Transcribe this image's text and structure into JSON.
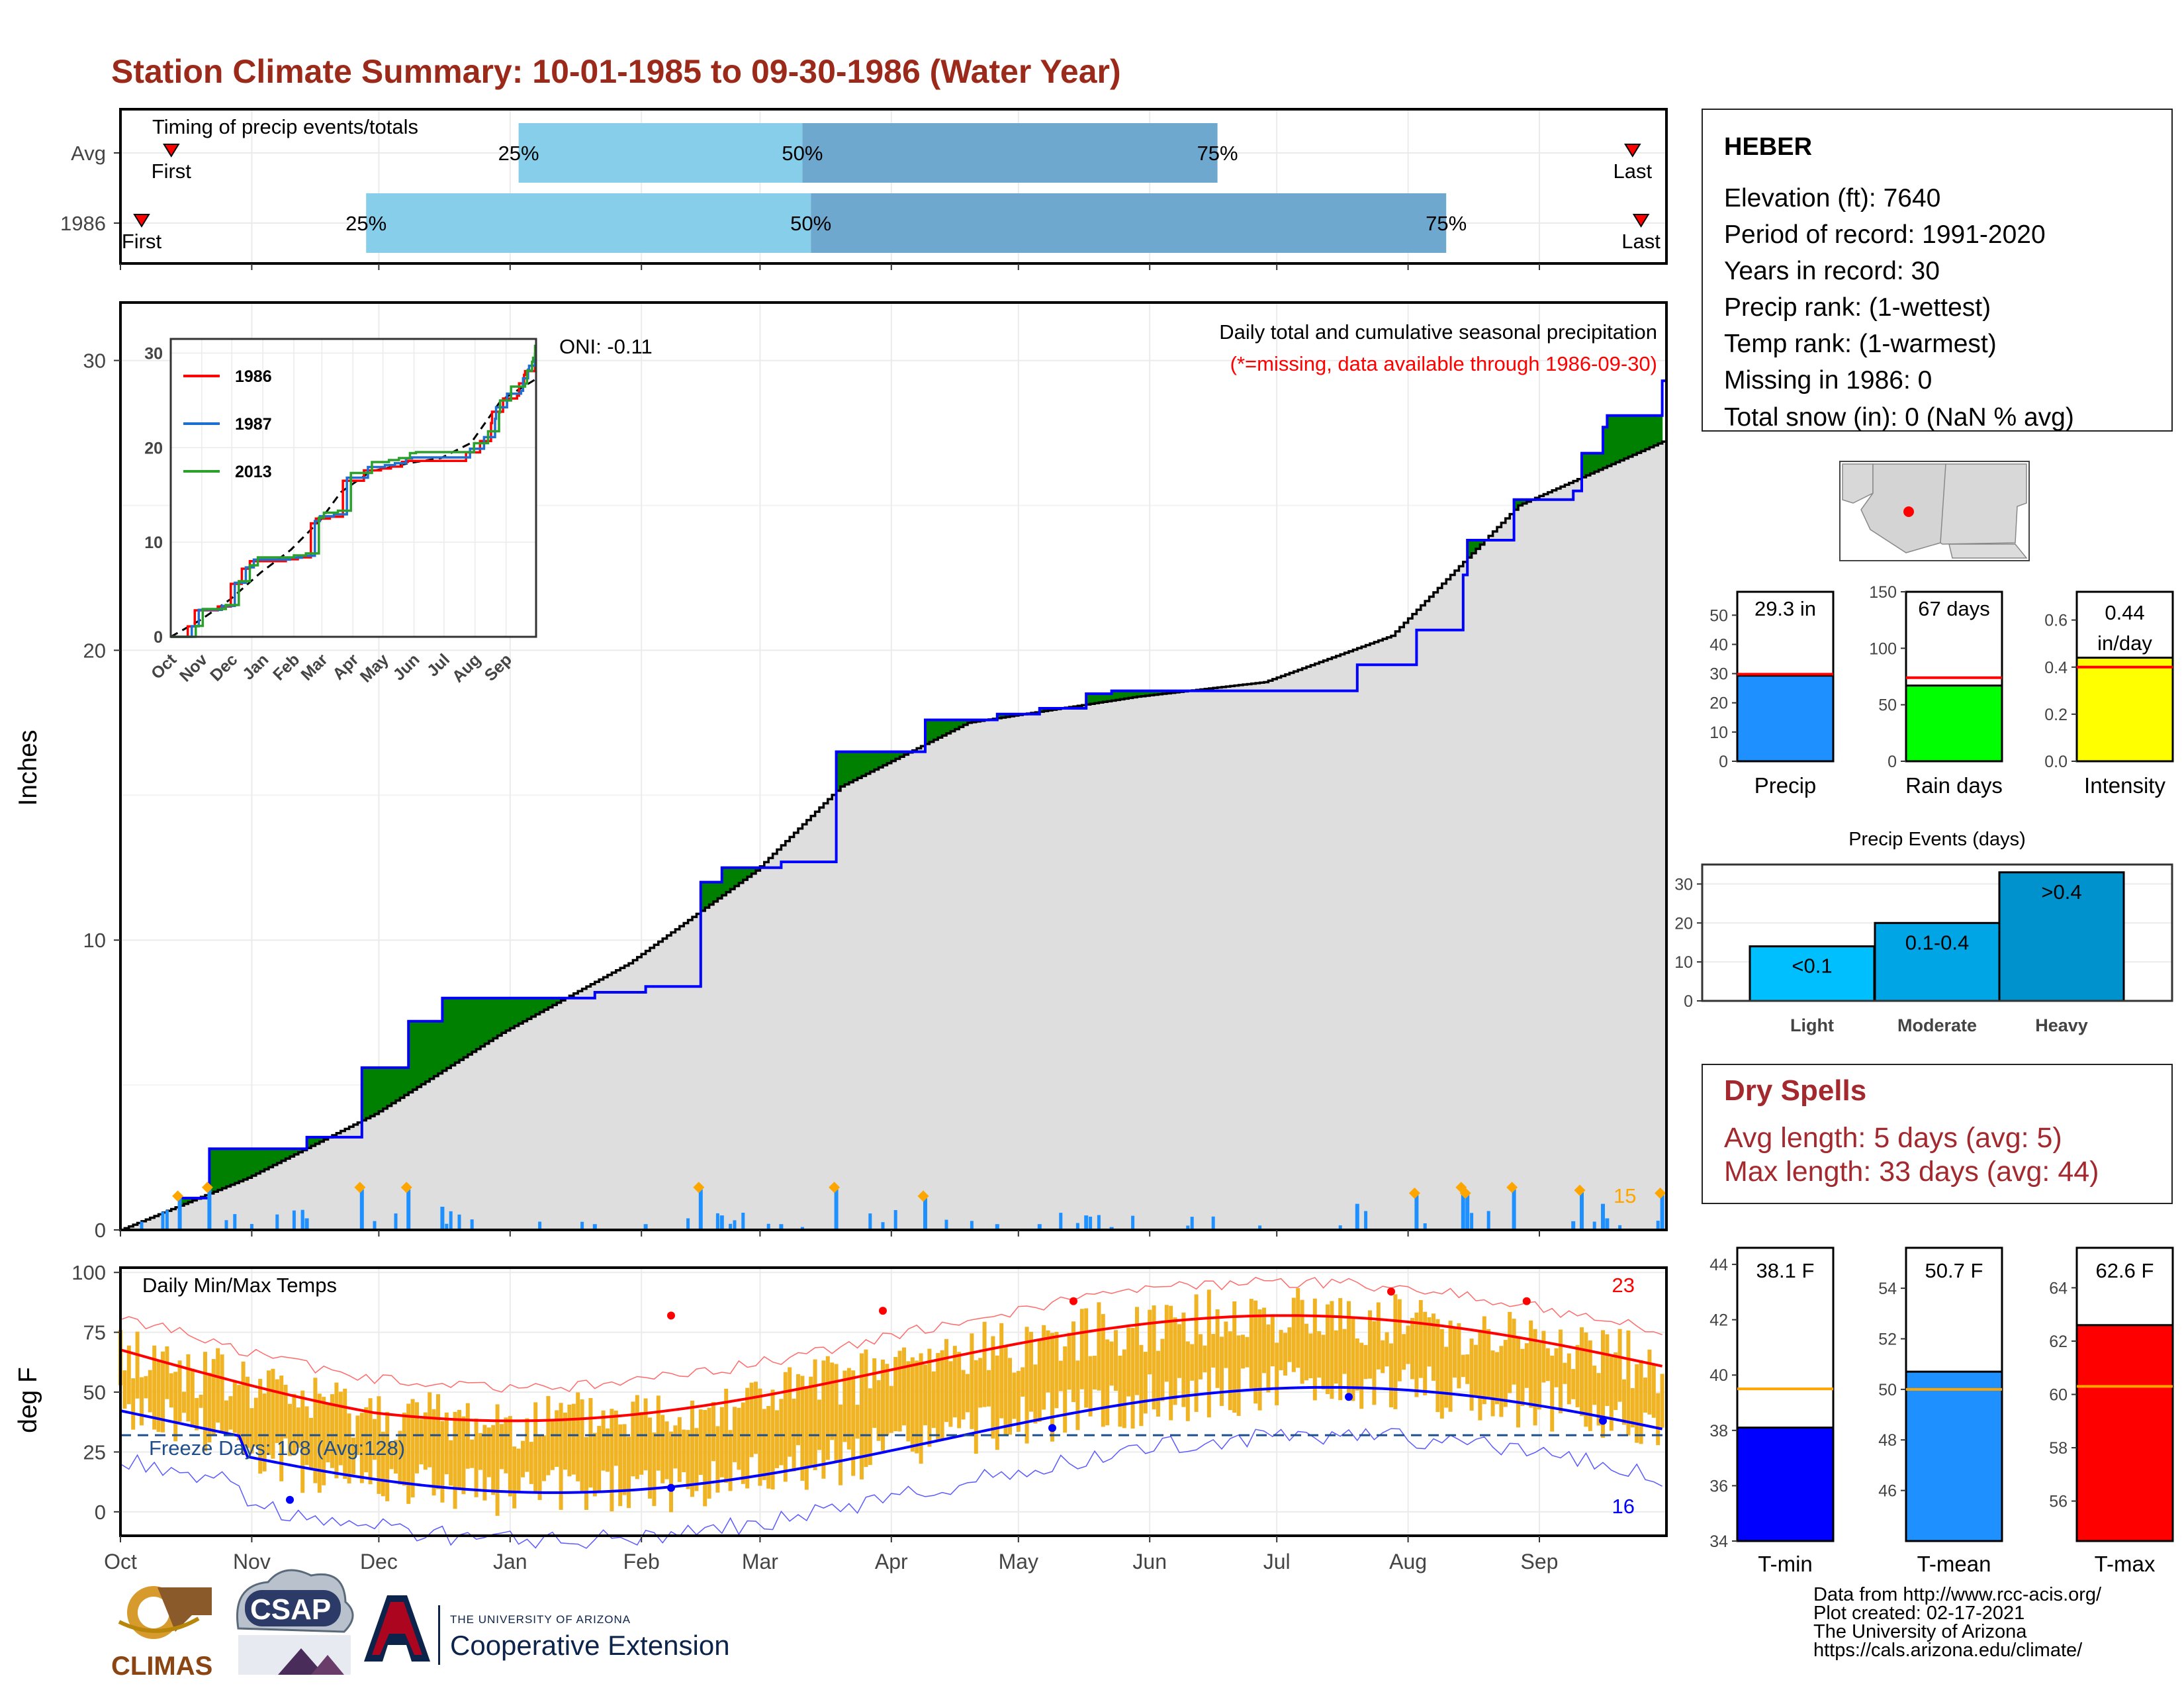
{
  "title": "Station Climate Summary: 10-01-1985 to 09-30-1986 (Water Year)",
  "colors": {
    "title": "#9b2a1a",
    "green": "#008000",
    "brown": "#7a4a08",
    "avg_fill": "#dedede",
    "precip_line": "#0000ff",
    "gold": "#f0b324",
    "red": "#ff0000",
    "blue": "#0000ff",
    "light_blue": "#87ceeb",
    "mid_blue": "#6fa8cf",
    "event_cyan": "#00bfff",
    "event_mid": "#00a5e6",
    "event_dark": "#0092cc",
    "bar_precip": "#1e90ff",
    "bar_raindays": "#00ff00",
    "bar_intensity": "#ffff00",
    "dry_spell": "#a3292e",
    "orange_line": "#ffa500"
  },
  "timing": {
    "label": "Timing of precip events/totals",
    "rows": [
      {
        "name": "Avg",
        "q25": "25%",
        "q50": "50%",
        "q75": "75%",
        "first": "First",
        "last": "Last"
      },
      {
        "name": "1986",
        "q25": "25%",
        "q50": "50%",
        "q75": "75%",
        "first": "First",
        "last": "Last"
      }
    ]
  },
  "precip_panel": {
    "ylabel": "Inches",
    "yticks": [
      "0",
      "10",
      "20",
      "30"
    ],
    "oni": "ONI: -0.11",
    "subtitle": "Daily total and cumulative seasonal precipitation",
    "note": "(*=missing, data available through 1986-09-30)",
    "corner_value": "15"
  },
  "inset": {
    "yticks": [
      "0",
      "10",
      "20",
      "30"
    ],
    "xticks": [
      "Oct",
      "Nov",
      "Dec",
      "Jan",
      "Feb",
      "Mar",
      "Apr",
      "May",
      "Jun",
      "Jul",
      "Aug",
      "Sep"
    ],
    "legend": [
      {
        "name": "1986",
        "color": "#ff0000"
      },
      {
        "name": "1987",
        "color": "#1f6fd1"
      },
      {
        "name": "2013",
        "color": "#2ca02c"
      }
    ]
  },
  "temp_panel": {
    "ylabel": "deg F",
    "label": "Daily Min/Max Temps",
    "yticks": [
      "0",
      "25",
      "50",
      "75",
      "100"
    ],
    "freeze": "Freeze Days: 108 (Avg:128)",
    "max_count": "23",
    "min_count": "16"
  },
  "months": [
    "Oct",
    "Nov",
    "Dec",
    "Jan",
    "Feb",
    "Mar",
    "Apr",
    "May",
    "Jun",
    "Jul",
    "Aug",
    "Sep"
  ],
  "station": {
    "name": "HEBER",
    "lines": [
      "Elevation (ft): 7640",
      "Period of record: 1991-2020",
      "Years in record: 30",
      "Precip rank:  (1-wettest)",
      "Temp rank:  (1-warmest)",
      "Missing in 1986: 0",
      "Total snow (in): 0 (NaN % avg)"
    ]
  },
  "summary_bars": [
    {
      "label": "Precip",
      "value_text": "29.3 in",
      "value": 29.3,
      "avg": 29.8,
      "max": 58,
      "ticks": [
        "0",
        "10",
        "20",
        "30",
        "40",
        "50"
      ],
      "tickvals": [
        0,
        10,
        20,
        30,
        40,
        50
      ]
    },
    {
      "label": "Rain days",
      "value_text": "67 days",
      "value": 67,
      "avg": 74,
      "max": 150,
      "ticks": [
        "0",
        "50",
        "100",
        "150"
      ],
      "tickvals": [
        0,
        50,
        100,
        150
      ]
    },
    {
      "label": "Intensity",
      "value_text": "0.44",
      "value_text2": "in/day",
      "value": 0.44,
      "avg": 0.4,
      "max": 0.72,
      "ticks": [
        "0.0",
        "0.2",
        "0.4",
        "0.6"
      ],
      "tickvals": [
        0,
        0.2,
        0.4,
        0.6
      ]
    }
  ],
  "events": {
    "title": "Precip Events (days)",
    "ticks": [
      "0",
      "10",
      "20",
      "30"
    ],
    "bars": [
      {
        "category": "Light",
        "label": "<0.1",
        "value": 14
      },
      {
        "category": "Moderate",
        "label": "0.1-0.4",
        "value": 20
      },
      {
        "category": "Heavy",
        "label": ">0.4",
        "value": 33
      }
    ]
  },
  "dry_spells": {
    "title": "Dry Spells",
    "avg": "Avg length: 5 days (avg: 5)",
    "max": "Max length: 33 days (avg: 44)"
  },
  "temp_bars": [
    {
      "label": "T-min",
      "value_text": "38.1 F",
      "value": 38.1,
      "avg": 39.5,
      "min": 34,
      "max": 44.6,
      "ticks": [
        "34",
        "36",
        "38",
        "40",
        "42",
        "44"
      ],
      "tickvals": [
        34,
        36,
        38,
        40,
        42,
        44
      ]
    },
    {
      "label": "T-mean",
      "value_text": "50.7 F",
      "value": 50.7,
      "avg": 50,
      "min": 44,
      "max": 55.6,
      "ticks": [
        "46",
        "48",
        "50",
        "52",
        "54"
      ],
      "tickvals": [
        46,
        48,
        50,
        52,
        54
      ]
    },
    {
      "label": "T-max",
      "value_text": "62.6 F",
      "value": 62.6,
      "avg": 60.3,
      "min": 54.5,
      "max": 65.5,
      "ticks": [
        "56",
        "58",
        "60",
        "62",
        "64"
      ],
      "tickvals": [
        56,
        58,
        60,
        62,
        64
      ]
    }
  ],
  "footer": {
    "logos": {
      "climas": "CLIMAS",
      "csap": "CSAP",
      "ua_small": "THE UNIVERSITY OF ARIZONA",
      "ua_big": "Cooperative Extension"
    },
    "credits": [
      "Data from http://www.rcc-acis.org/",
      "Plot created: 02-17-2021",
      "The University of Arizona",
      "https://cals.arizona.edu/climate/"
    ]
  },
  "chart_data": {
    "type": "area",
    "title": "Station Climate Summary: 10-01-1985 to 09-30-1986 (Water Year)",
    "ylabel": "Inches",
    "ylim": [
      0,
      32
    ],
    "x_unit": "day of water year",
    "series": [
      {
        "name": "1986",
        "x": [
          0,
          14,
          21,
          44,
          57,
          68,
          76,
          112,
          124,
          137,
          142,
          156,
          169,
          190,
          207,
          217,
          228,
          234,
          292,
          306,
          317,
          318,
          329,
          343,
          345,
          350,
          351,
          364
        ],
        "y": [
          0,
          1.1,
          2.8,
          3.2,
          5.6,
          7.2,
          8.0,
          8.2,
          8.4,
          12.0,
          12.5,
          12.7,
          16.5,
          17.6,
          17.8,
          18.0,
          18.5,
          18.6,
          19.5,
          20.7,
          22.6,
          23.8,
          25.2,
          25.5,
          26.8,
          27.7,
          28.1,
          29.3
        ]
      },
      {
        "x": [
          0,
          30,
          60,
          90,
          120,
          150,
          170,
          200,
          240,
          270,
          300,
          330,
          364
        ],
        "y": [
          0,
          1.8,
          4.0,
          6.8,
          9.2,
          12.4,
          15.3,
          17.5,
          18.4,
          18.9,
          20.5,
          25.0,
          27.2
        ]
      }
    ]
  }
}
